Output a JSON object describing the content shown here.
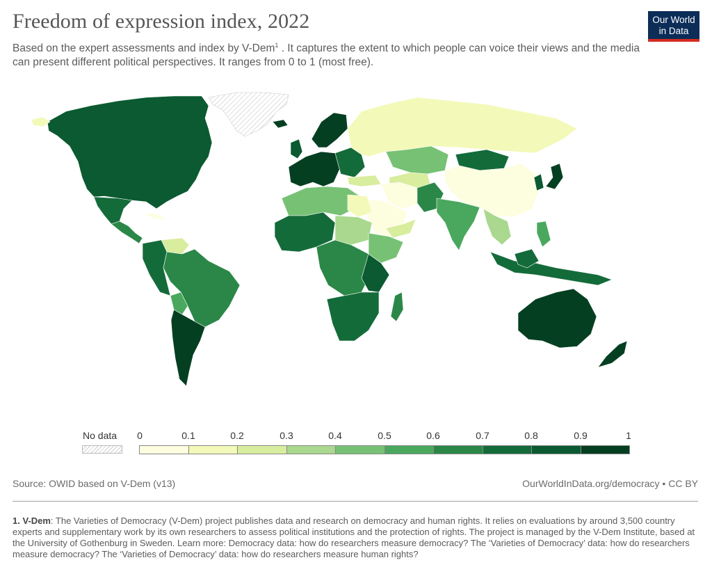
{
  "title": "Freedom of expression index, 2022",
  "subtitle_part1": "Based on the expert assessments and index by V-Dem",
  "subtitle_sup": "1",
  "subtitle_part2": " . It captures the extent to which people can voice their views and the media can present different political perspectives. It ranges from 0 to 1 (most free).",
  "logo": {
    "line1": "Our World",
    "line2": "in Data"
  },
  "legend": {
    "no_data_label": "No data",
    "ticks": [
      "0",
      "0.1",
      "0.2",
      "0.3",
      "0.4",
      "0.5",
      "0.6",
      "0.7",
      "0.8",
      "0.9",
      "1"
    ],
    "colors": [
      "#fdfde0",
      "#f3f9b8",
      "#d8ed9d",
      "#a9d88e",
      "#77c175",
      "#4aa85e",
      "#2b8748",
      "#146b3a",
      "#0b5a31",
      "#053f22"
    ]
  },
  "source": "Source: OWID based on V-Dem (v13)",
  "url": "OurWorldInData.org/democracy • CC BY",
  "footnote": {
    "number": "1. V-Dem",
    "text": ": The Varieties of Democracy (V-Dem) project publishes data and research on democracy and human rights. It relies on evaluations by around 3,500 country experts and supplementary work by its own researchers to assess political institutions and the protection of rights. The project is managed by the V-Dem Institute, based at the University of Gothenburg in Sweden. Learn more: Democracy data: how do researchers measure democracy? The ‘Varieties of Democracy’ data: how do researchers measure democracy? The ‘Varieties of Democracy’ data: how do researchers measure human rights?"
  }
}
